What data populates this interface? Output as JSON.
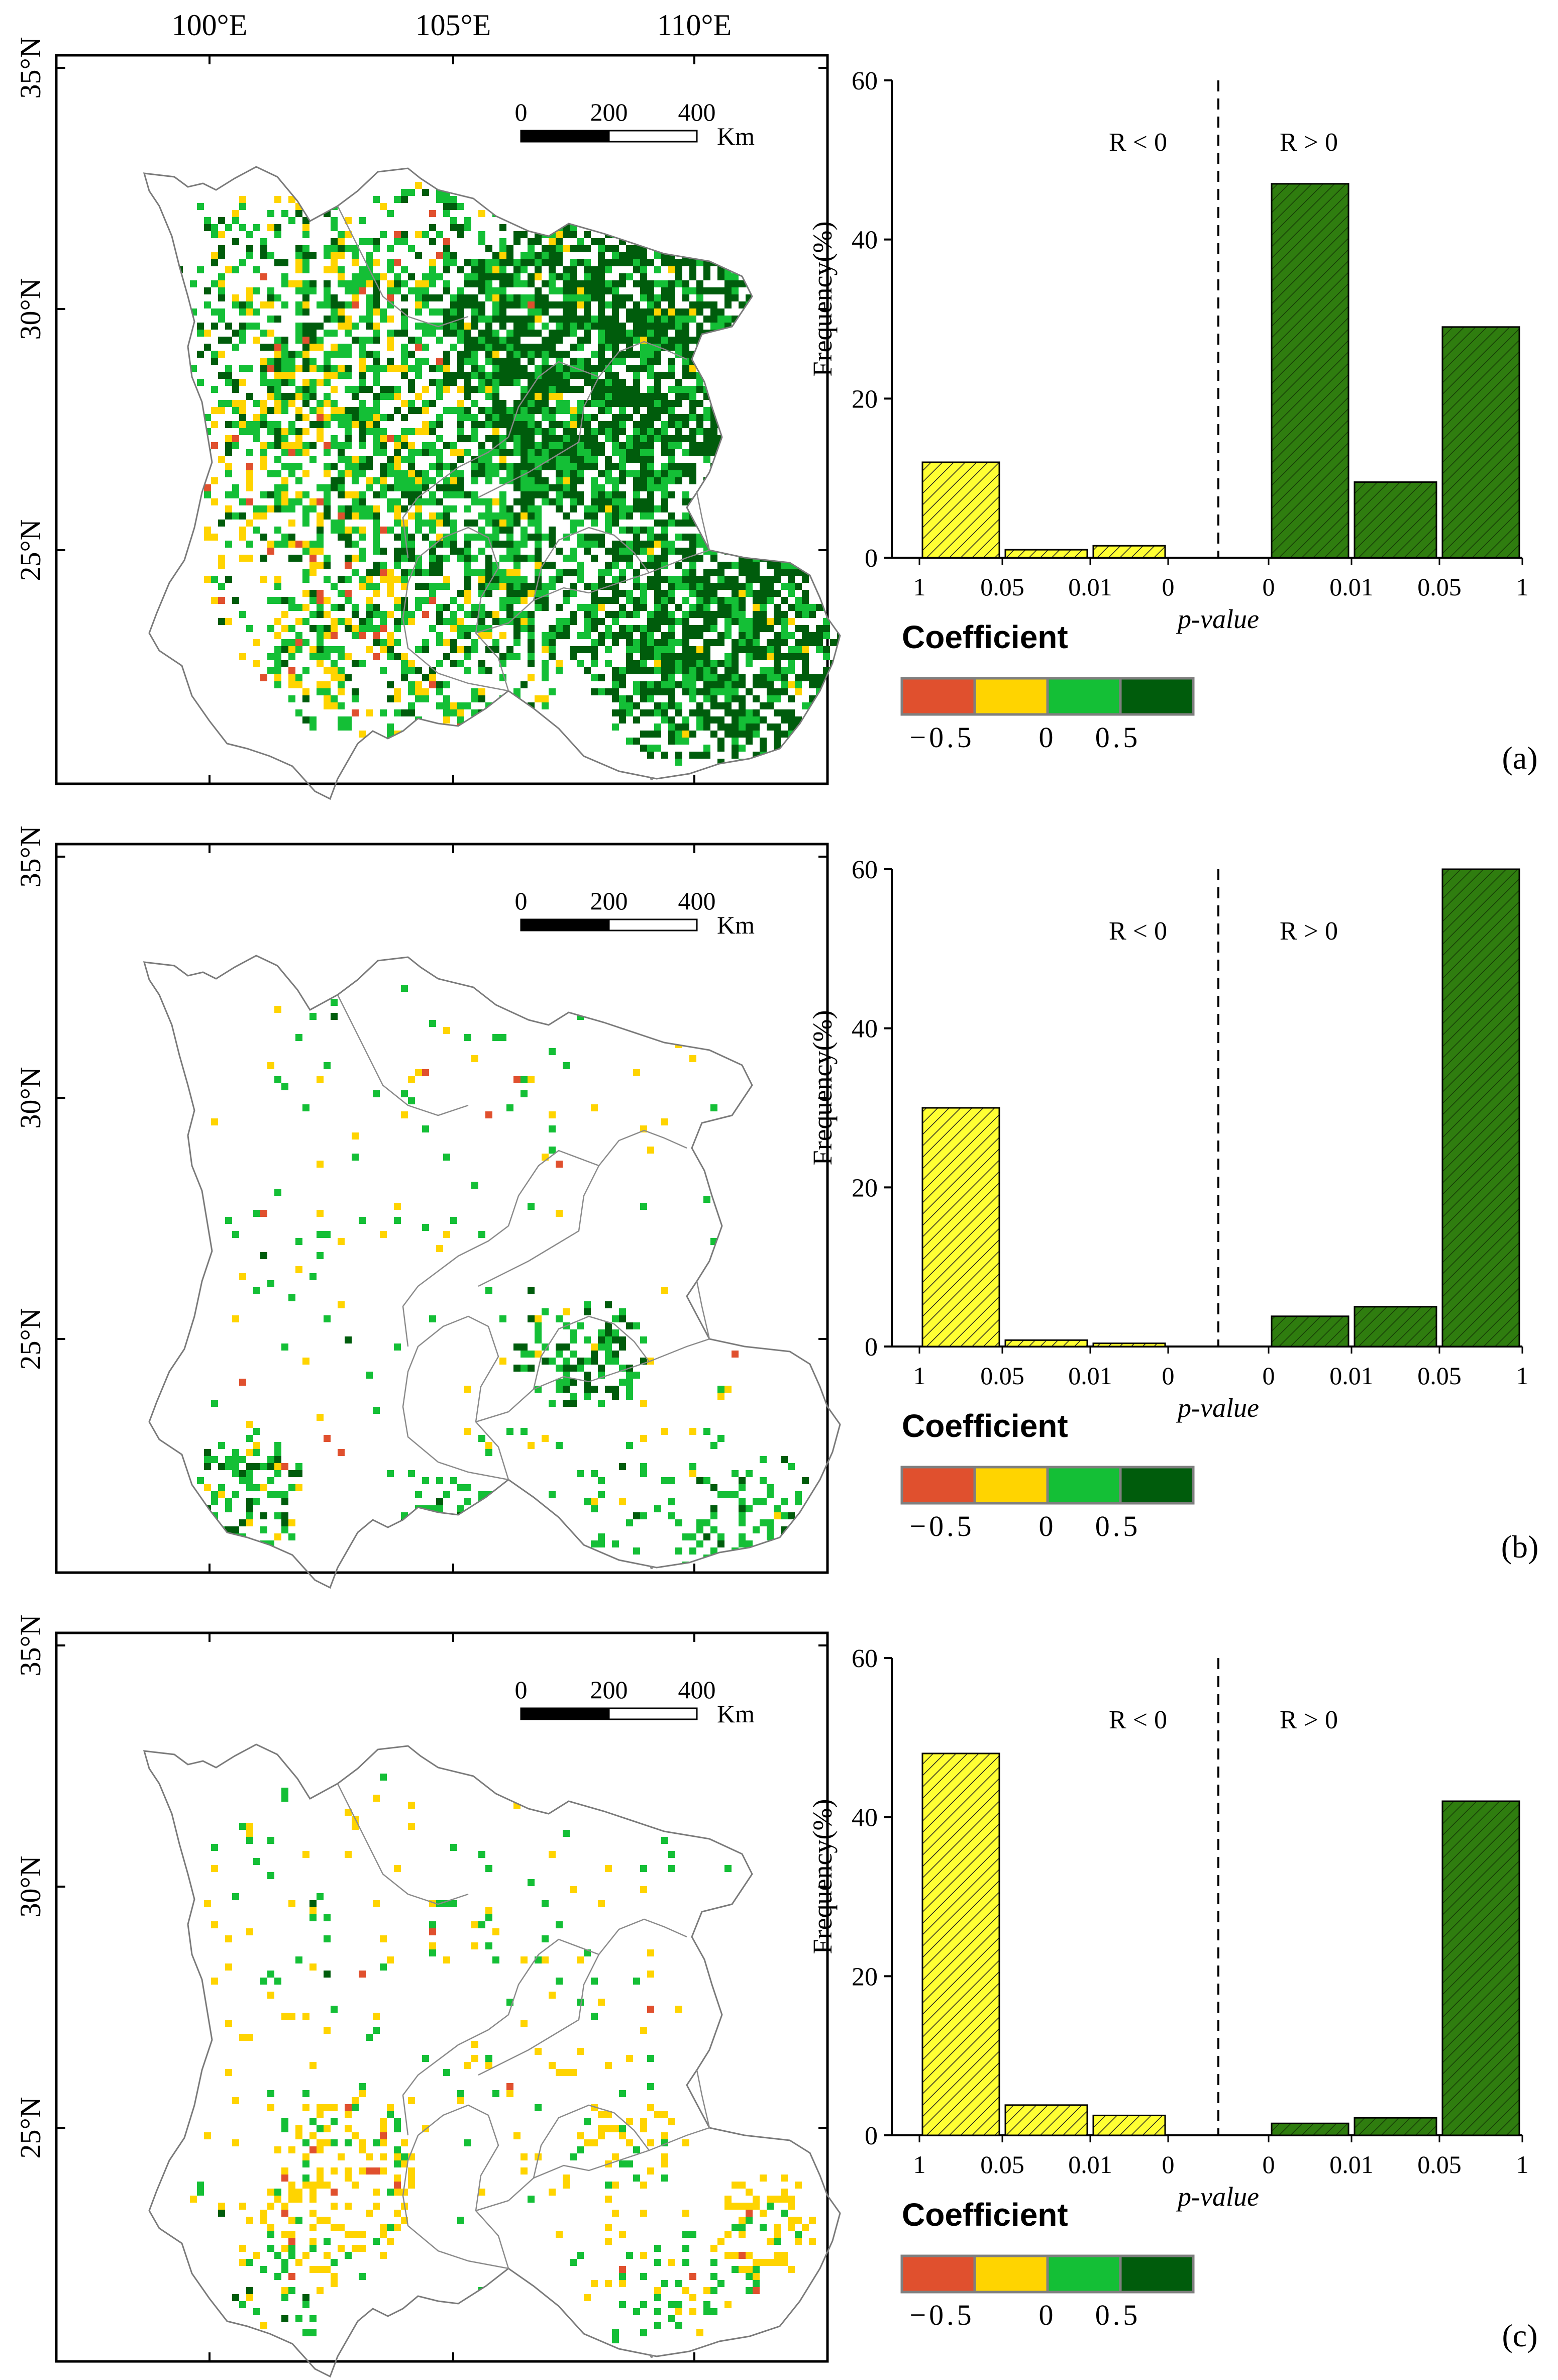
{
  "map_axis": {
    "lon_ticks": [
      "100°E",
      "105°E",
      "110°E"
    ],
    "lat_ticks": [
      "35°N",
      "30°N",
      "25°N"
    ],
    "scalebar_labels": [
      "0",
      "200",
      "400"
    ],
    "scalebar_unit": "Km"
  },
  "legend": {
    "title": "Coefficient",
    "tick_labels": [
      "−0.5",
      "0",
      "0.5"
    ],
    "colors": [
      "#e0502e",
      "#ffd400",
      "#14bf36",
      "#005c0c"
    ]
  },
  "hist_common": {
    "ylabel": "Frequency(%)",
    "xlabel": "p-value",
    "region_neg": "R < 0",
    "region_pos": "R > 0",
    "neg_ticks": [
      "1",
      "0.05",
      "0.01",
      "0"
    ],
    "pos_ticks": [
      "0",
      "0.01",
      "0.05",
      "1"
    ],
    "y_ticks": [
      "0",
      "20",
      "40",
      "60"
    ],
    "neg_color": "#ffff33",
    "pos_color": "#2f7d0f"
  },
  "panels": [
    {
      "label": "(a)"
    },
    {
      "label": "(b)"
    },
    {
      "label": "(c)"
    }
  ],
  "chart_data": [
    {
      "type": "bar",
      "title": "(a)",
      "xlabel": "p-value",
      "ylabel": "Frequency(%)",
      "ylim": [
        0,
        60
      ],
      "categories": [
        "R<0: 1–0.05",
        "R<0: 0.05–0.01",
        "R<0: 0.01–0",
        "R>0: 0–0.01",
        "R>0: 0.01–0.05",
        "R>0: 0.05–1"
      ],
      "values": [
        12.0,
        1.0,
        1.5,
        47.0,
        9.5,
        29.0
      ]
    },
    {
      "type": "bar",
      "title": "(b)",
      "xlabel": "p-value",
      "ylabel": "Frequency(%)",
      "ylim": [
        0,
        60
      ],
      "categories": [
        "R<0: 1–0.05",
        "R<0: 0.05–0.01",
        "R<0: 0.01–0",
        "R>0: 0–0.01",
        "R>0: 0.01–0.05",
        "R>0: 0.05–1"
      ],
      "values": [
        30.0,
        0.8,
        0.4,
        3.8,
        5.0,
        60.0
      ]
    },
    {
      "type": "bar",
      "title": "(c)",
      "xlabel": "p-value",
      "ylabel": "Frequency(%)",
      "ylim": [
        0,
        60
      ],
      "categories": [
        "R<0: 1–0.05",
        "R<0: 0.05–0.01",
        "R<0: 0.01–0",
        "R>0: 0–0.01",
        "R>0: 0.01–0.05",
        "R>0: 0.05–1"
      ],
      "values": [
        48.0,
        3.8,
        2.5,
        1.5,
        2.2,
        42.0
      ]
    }
  ]
}
